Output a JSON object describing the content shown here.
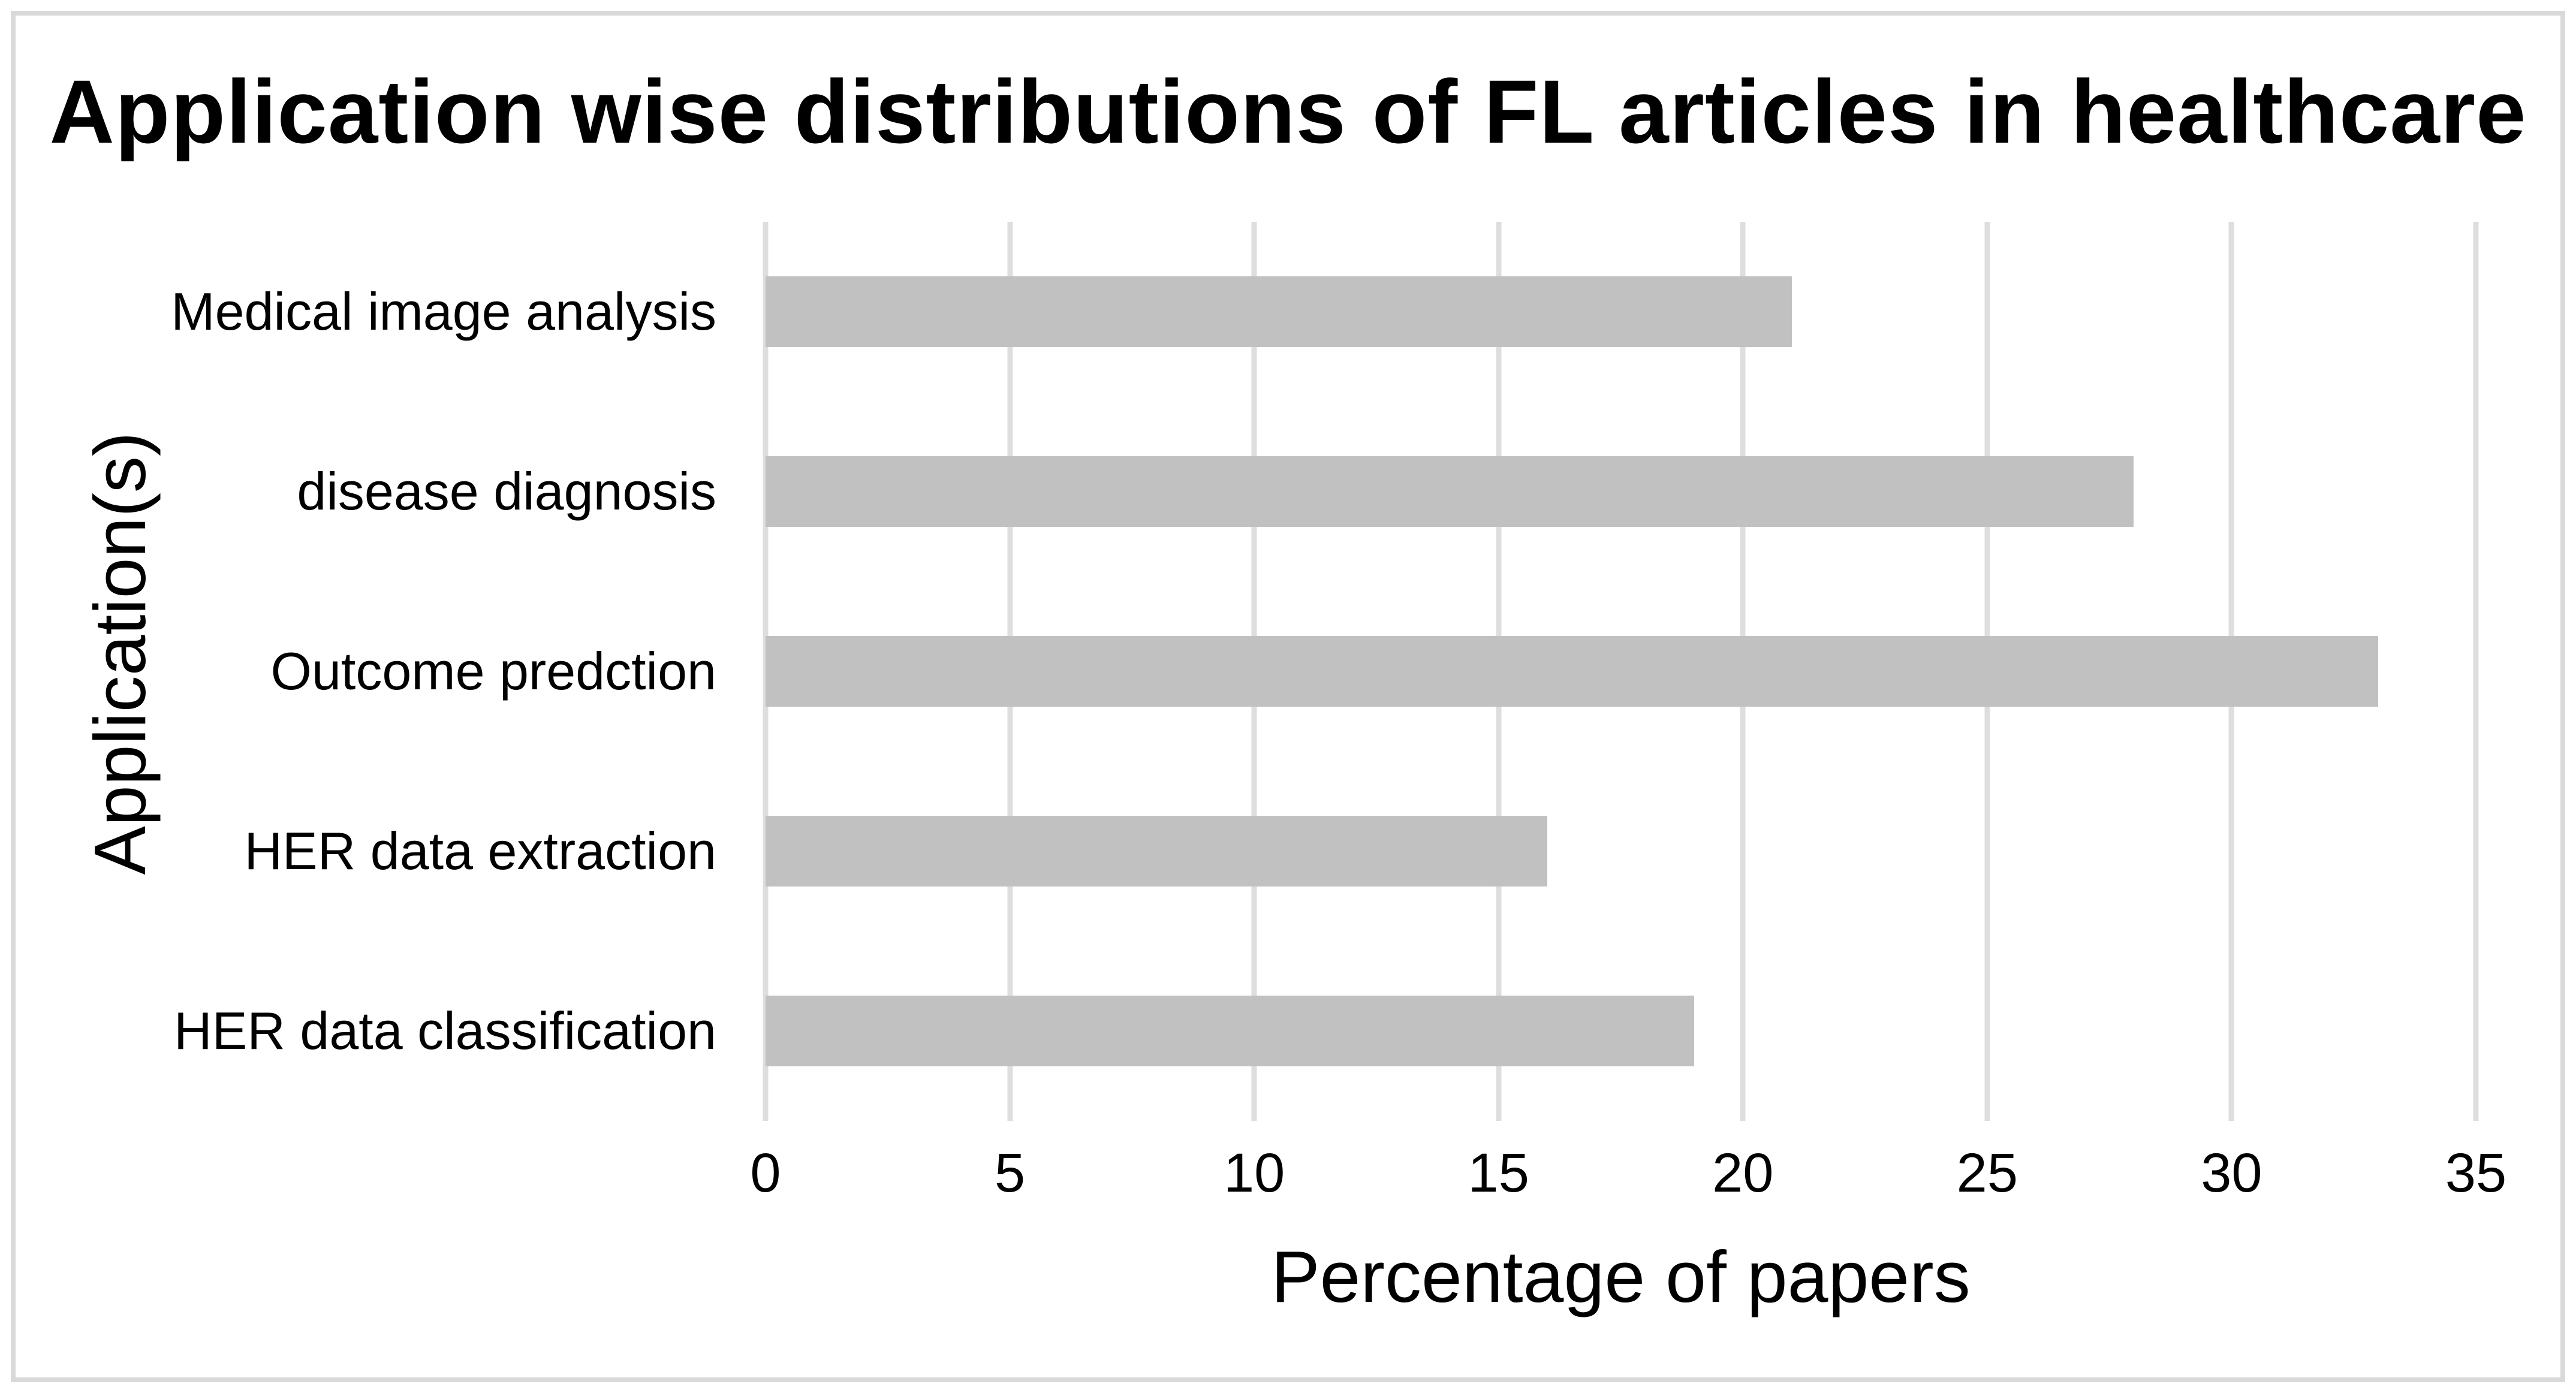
{
  "chart_data": {
    "type": "bar",
    "orientation": "horizontal",
    "title": "Application wise distributions of FL articles in healthcare",
    "categories": [
      "Medical image analysis",
      "disease diagnosis",
      "Outcome predction",
      "HER data extraction",
      "HER data classification"
    ],
    "values": [
      21,
      28,
      33,
      16,
      19
    ],
    "xlabel": "Percentage of papers",
    "ylabel": "Application(s)",
    "x_ticks": [
      0,
      5,
      10,
      15,
      20,
      25,
      30,
      35
    ],
    "xlim": [
      0,
      35
    ],
    "grid": "vertical-only",
    "legend": "none",
    "bar_color": "#c1c1c1",
    "gridline_color": "#dedede",
    "frame_color": "#d9d9d9",
    "text_color": "#000000",
    "background_color": "#ffffff"
  }
}
